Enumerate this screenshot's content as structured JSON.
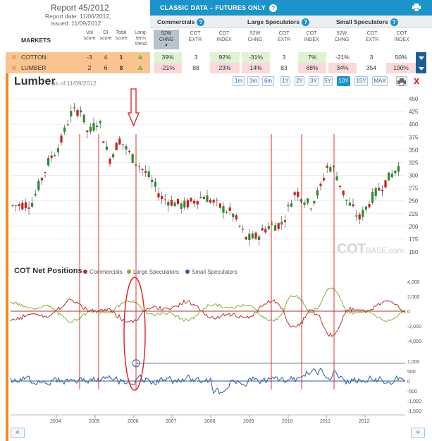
{
  "report": {
    "title": "Report 45/2012",
    "date": "Report date: 11/06/2012,",
    "issued": "issued: 11/09/2012"
  },
  "header": {
    "classic_title": "CLASSIC DATA – FUTURES ONLY",
    "help": "?",
    "groups": [
      "Commercials",
      "Large Speculators",
      "Small Speculators"
    ]
  },
  "table": {
    "markets_label": "MARKETS",
    "score_heads": [
      {
        "l1": "Vol",
        "l2": "score"
      },
      {
        "l1": "OI",
        "l2": "score"
      },
      {
        "l1": "Total",
        "l2": "score"
      },
      {
        "l1": "Long-",
        "l2": "term",
        "l3": "trend"
      }
    ],
    "col_heads": [
      {
        "l1": "52W",
        "l2": "CHNG"
      },
      {
        "l1": "COT",
        "l2": "EXTR"
      },
      {
        "l1": "COT",
        "l2": "INDEX"
      },
      {
        "l1": "52W",
        "l2": "CHNG"
      },
      {
        "l1": "COT",
        "l2": "EXTR"
      },
      {
        "l1": "COT",
        "l2": "INDEX"
      },
      {
        "l1": "52W",
        "l2": "CHNG"
      },
      {
        "l1": "COT",
        "l2": "EXTR"
      },
      {
        "l1": "COT",
        "l2": "INDEX"
      }
    ],
    "rows": [
      {
        "name": "COTTON",
        "vol": "-3",
        "oi": "4",
        "total": "1",
        "cells": [
          "39%",
          "3",
          "92%",
          "-31%",
          "3",
          "7%",
          "-21%",
          "3",
          "50%"
        ]
      },
      {
        "name": "LUMBER",
        "vol": "2",
        "oi": "6",
        "total": "8",
        "cells": [
          "-21%",
          "88",
          "23%",
          "14%",
          "83",
          "68%",
          "34%",
          "354",
          "100%"
        ]
      }
    ]
  },
  "chart": {
    "title": "Lumber",
    "as_of": "as of 11/09/2012",
    "zoom_buttons": [
      "1m",
      "3m",
      "6m",
      "1Y",
      "2Y",
      "3Y",
      "5Y",
      "10Y",
      "15Y",
      "MAX"
    ],
    "active_zoom": "10Y",
    "close": "x",
    "price_ticks": [
      "450",
      "425",
      "400",
      "375",
      "350",
      "325",
      "300",
      "275",
      "250",
      "225",
      "200",
      "175",
      "150"
    ],
    "net_title": "COT Net Positions",
    "legend": [
      "Commercials",
      "Large Speculators",
      "Small Speculators"
    ],
    "cl_ticks": [
      "4,000",
      "2,000",
      "0",
      "-2,000",
      "-4,000"
    ],
    "small_ticks": [
      "1,000",
      "500",
      "0",
      "-500",
      "-1,000",
      "-1,500"
    ],
    "years": [
      "2004",
      "2005",
      "2006",
      "2007",
      "2008",
      "2009",
      "2010",
      "2011",
      "2012"
    ],
    "watermark_main": "COT",
    "watermark_sub": "BASE.com",
    "nav_prev": "«",
    "nav_next": "»"
  },
  "colors": {
    "accent_blue": "#1c93c9",
    "orange": "#f08a1d",
    "commercials": "#b3312c",
    "large_specs": "#8aab3a",
    "small_specs": "#2a5b9e",
    "candle_up": "#2e8b2e",
    "candle_down": "#c8201e",
    "annotation_red": "#e01b1b"
  }
}
